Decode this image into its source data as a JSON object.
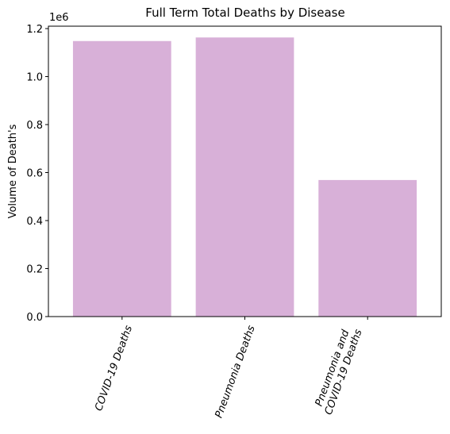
{
  "chart_data": {
    "type": "bar",
    "title": "Full Term Total Deaths by Disease",
    "xlabel": "",
    "ylabel": "Volume of Death's",
    "offset_label": "1e6",
    "categories": [
      "COVID-19 Deaths",
      "Pneumonia Deaths",
      "Pneumonia and\nCOVID-19 Deaths"
    ],
    "values": [
      1148000,
      1163000,
      569000
    ],
    "ylim": [
      0,
      1210000
    ],
    "yticks": [
      0.0,
      0.2,
      0.4,
      0.6,
      0.8,
      1.0,
      1.2
    ],
    "ytick_scale": 1000000,
    "bar_color": "#d8b0d8",
    "x_tick_rotation": 70,
    "grid": false
  }
}
